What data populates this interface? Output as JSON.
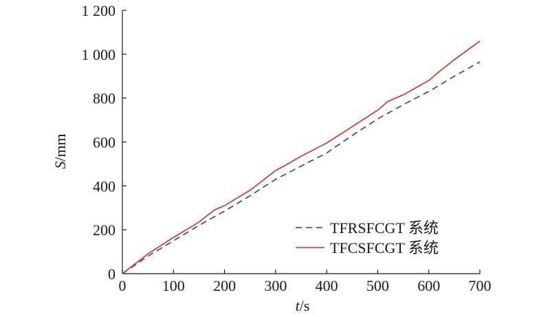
{
  "chart_data": {
    "type": "line",
    "title": "",
    "xlabel": {
      "var": "t",
      "unit": "/s"
    },
    "ylabel": {
      "var": "S",
      "unit": "/mm"
    },
    "xlim": [
      0,
      700
    ],
    "ylim": [
      0,
      1200
    ],
    "xticks": [
      {
        "value": 0,
        "label": "0"
      },
      {
        "value": 100,
        "label": "100"
      },
      {
        "value": 200,
        "label": "200"
      },
      {
        "value": 300,
        "label": "300"
      },
      {
        "value": 400,
        "label": "400"
      },
      {
        "value": 500,
        "label": "500"
      },
      {
        "value": 600,
        "label": "600"
      },
      {
        "value": 700,
        "label": "700"
      }
    ],
    "yticks": [
      {
        "value": 0,
        "label": "0"
      },
      {
        "value": 200,
        "label": "200"
      },
      {
        "value": 400,
        "label": "400"
      },
      {
        "value": 600,
        "label": "600"
      },
      {
        "value": 800,
        "label": "800"
      },
      {
        "value": 1000,
        "label": "1 000"
      },
      {
        "value": 1200,
        "label": "1 200"
      }
    ],
    "grid": false,
    "legend_position": "bottom-right",
    "series": [
      {
        "name": "TFRSFCGT 系统",
        "color": "#2b3f8c",
        "style": "dashed",
        "x": [
          0,
          50,
          100,
          150,
          200,
          250,
          300,
          350,
          400,
          450,
          500,
          550,
          600,
          650,
          700
        ],
        "y": [
          0,
          80,
          150,
          220,
          285,
          355,
          430,
          490,
          550,
          630,
          705,
          770,
          830,
          900,
          965
        ]
      },
      {
        "name": "TFCSFCGT 系统",
        "color": "#d62a2a",
        "style": "solid",
        "x": [
          0,
          50,
          100,
          150,
          180,
          200,
          250,
          300,
          320,
          350,
          400,
          450,
          500,
          520,
          550,
          600,
          610,
          620,
          650,
          700
        ],
        "y": [
          0,
          90,
          165,
          235,
          290,
          310,
          380,
          470,
          495,
          535,
          595,
          670,
          745,
          785,
          815,
          880,
          900,
          920,
          975,
          1060
        ]
      }
    ]
  }
}
